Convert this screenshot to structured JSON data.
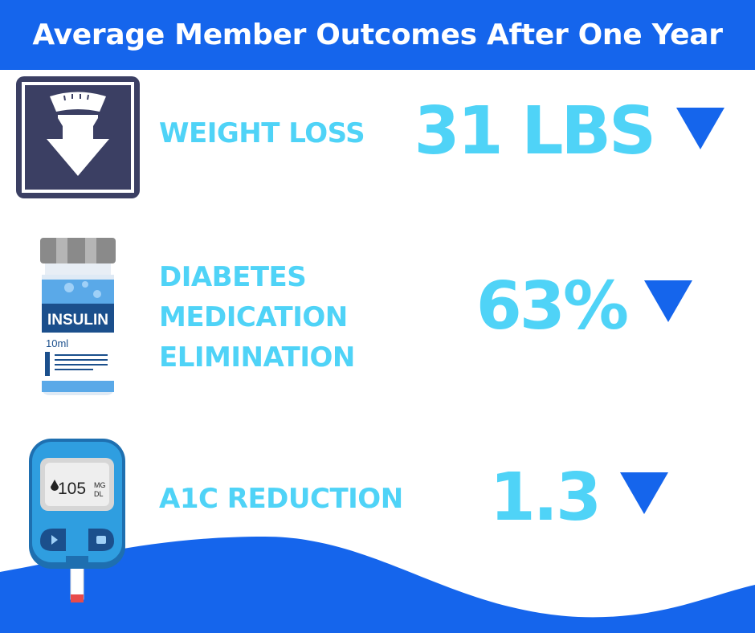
{
  "title": "Average Member Outcomes After One Year",
  "colors": {
    "header": "#1565ec",
    "accent_text": "#4fd3f7",
    "arrow": "#1565ec",
    "scale_bg": "#3b3f63"
  },
  "metrics": [
    {
      "label_lines": [
        "WEIGHT LOSS"
      ],
      "value": "31 LBS",
      "direction": "down",
      "icon": "scale-weight-down-icon"
    },
    {
      "label_lines": [
        "DIABETES",
        "MEDICATION",
        "ELIMINATION"
      ],
      "value": "63%",
      "direction": "down",
      "icon": "insulin-vial-icon"
    },
    {
      "label_lines": [
        "A1C REDUCTION"
      ],
      "value": "1.3",
      "direction": "down",
      "icon": "glucose-meter-icon"
    }
  ],
  "vial": {
    "label": "INSULIN",
    "volume": "10ml"
  },
  "meter": {
    "reading": "105",
    "unit_top": "MG",
    "unit_bottom": "DL"
  }
}
